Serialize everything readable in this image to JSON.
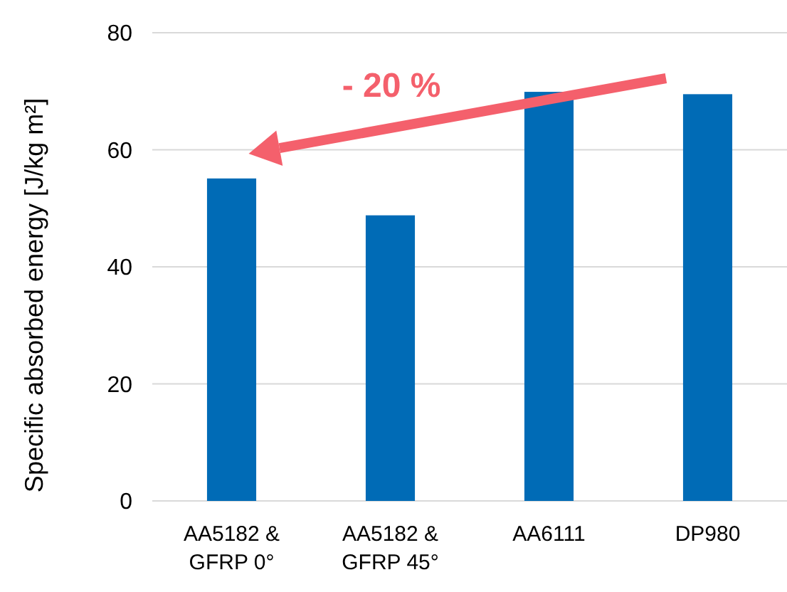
{
  "chart_data": {
    "type": "bar",
    "ylabel": "Specific absorbed energy [J/kg m²]",
    "categories": [
      "AA5182 &\nGFRP 0°",
      "AA5182 &\nGFRP 45°",
      "AA6111",
      "DP980"
    ],
    "values": [
      55.1,
      48.8,
      69.9,
      69.5
    ],
    "color": "#006bb6",
    "ylim": [
      0,
      80
    ],
    "yticks": [
      0,
      20,
      40,
      60,
      80
    ],
    "grid": "y",
    "annotations": [
      "- 20 %"
    ]
  }
}
